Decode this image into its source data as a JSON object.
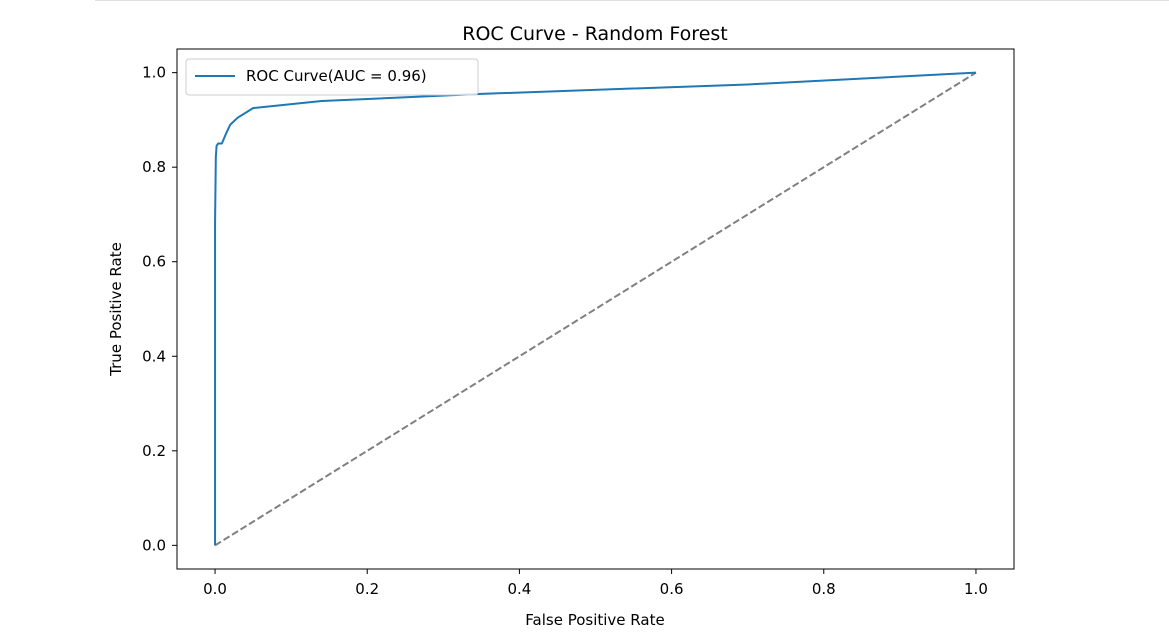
{
  "chart_data": {
    "type": "line",
    "title": "ROC Curve - Random Forest",
    "xlabel": "False Positive Rate",
    "ylabel": "True Positive Rate",
    "xlim": [
      -0.05,
      1.05
    ],
    "ylim": [
      -0.05,
      1.05
    ],
    "x_ticks": [
      0.0,
      0.2,
      0.4,
      0.6,
      0.8,
      1.0
    ],
    "x_tick_labels": [
      "0.0",
      "0.2",
      "0.4",
      "0.6",
      "0.8",
      "1.0"
    ],
    "y_ticks": [
      0.0,
      0.2,
      0.4,
      0.6,
      0.8,
      1.0
    ],
    "y_tick_labels": [
      "0.0",
      "0.2",
      "0.4",
      "0.6",
      "0.8",
      "1.0"
    ],
    "grid": false,
    "legend_position": "upper-left",
    "series": [
      {
        "name": "ROC Curve(AUC = 0.96)",
        "color": "#1f77b4",
        "style": "solid",
        "x": [
          0.0,
          0.0,
          0.001,
          0.002,
          0.004,
          0.009,
          0.015,
          0.02,
          0.03,
          0.05,
          0.14,
          0.35,
          0.7,
          1.0
        ],
        "y": [
          0.0,
          0.68,
          0.82,
          0.845,
          0.85,
          0.85,
          0.873,
          0.89,
          0.905,
          0.925,
          0.94,
          0.955,
          0.975,
          1.0
        ]
      },
      {
        "name": "",
        "color": "#808080",
        "style": "dashed",
        "x": [
          0.0,
          1.0
        ],
        "y": [
          0.0,
          1.0
        ]
      }
    ]
  }
}
